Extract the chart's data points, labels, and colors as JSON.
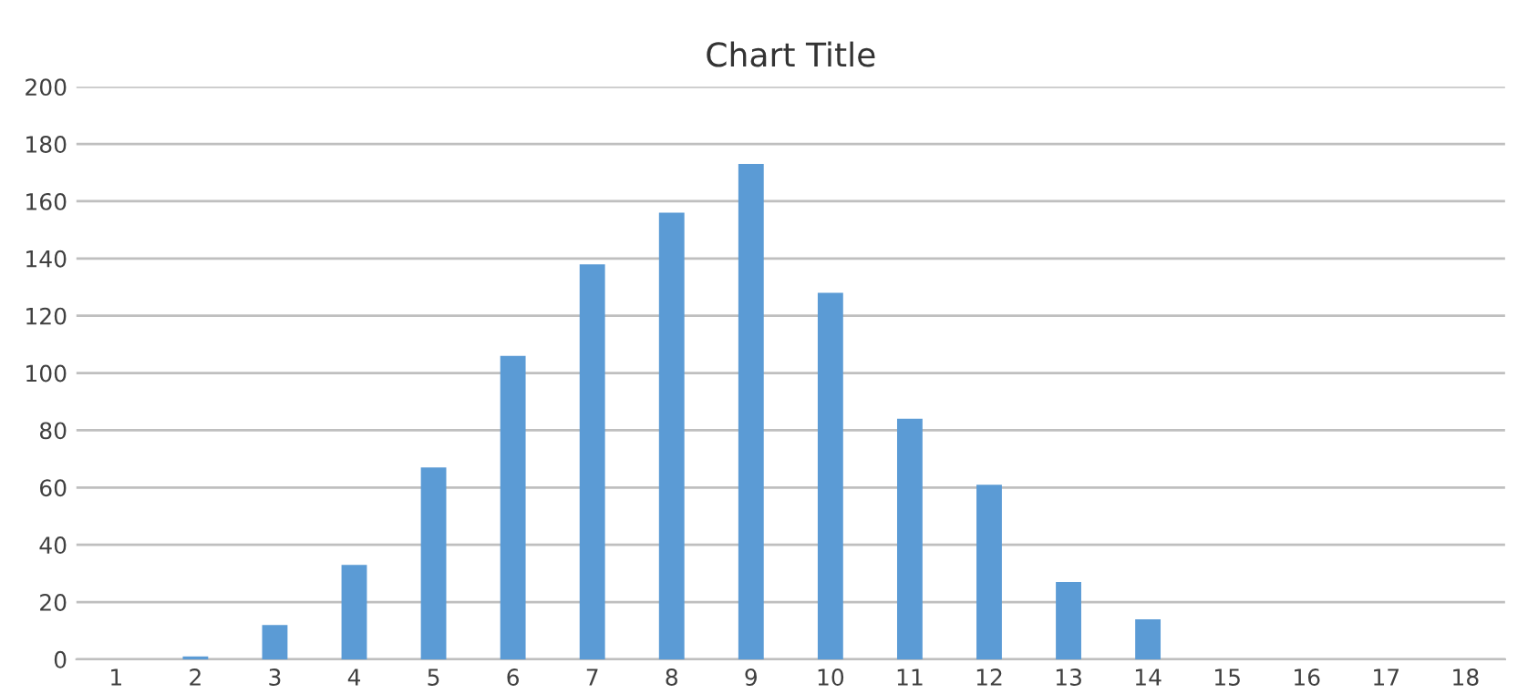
{
  "chart_data": {
    "type": "bar",
    "title": "Chart Title",
    "categories": [
      "1",
      "2",
      "3",
      "4",
      "5",
      "6",
      "7",
      "8",
      "9",
      "10",
      "11",
      "12",
      "13",
      "14",
      "15",
      "16",
      "17",
      "18"
    ],
    "values": [
      0,
      1,
      12,
      33,
      67,
      106,
      138,
      156,
      173,
      128,
      84,
      61,
      27,
      14,
      0,
      0,
      0,
      0
    ],
    "color": "#5b9bd5",
    "ylim": [
      0,
      200
    ],
    "yticks": [
      0,
      20,
      40,
      60,
      80,
      100,
      120,
      140,
      160,
      180,
      200
    ],
    "grid": "y",
    "legend": false
  }
}
